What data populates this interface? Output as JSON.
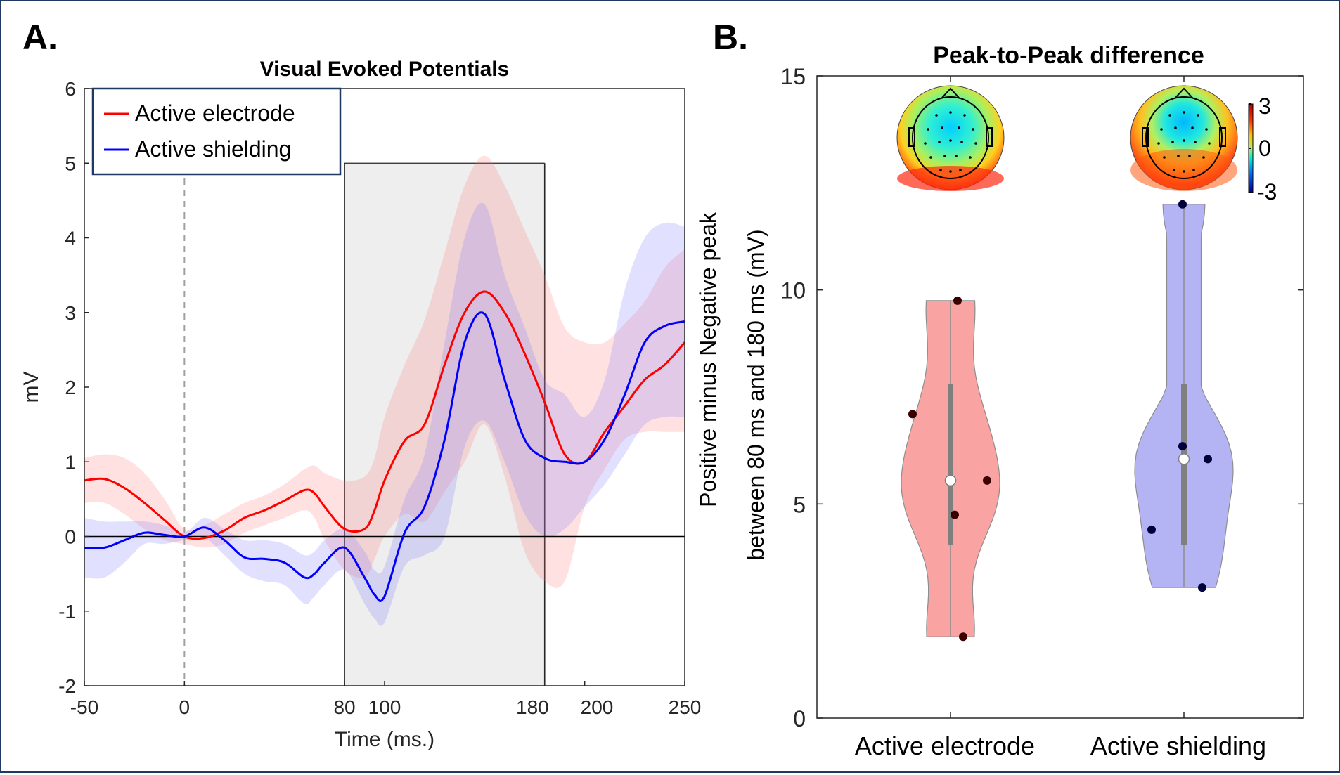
{
  "panels": {
    "a": {
      "letter": "A."
    },
    "b": {
      "letter": "B."
    }
  },
  "chart_data": [
    {
      "type": "line",
      "title": "Visual Evoked Potentials",
      "xlabel": "Time (ms.)",
      "ylabel": "mV",
      "xlim": [
        -50,
        250
      ],
      "ylim": [
        -2,
        6
      ],
      "xticks": [
        "-50",
        "0",
        "80",
        "100",
        "180",
        "200",
        "250"
      ],
      "yticks": [
        "-2",
        "-1",
        "0",
        "1",
        "2",
        "3",
        "4",
        "5",
        "6"
      ],
      "legend_position": "top-left",
      "window": {
        "x": [
          80,
          180
        ],
        "y": [
          -2,
          5
        ]
      },
      "stimulus_line_x": 0,
      "series": [
        {
          "name": "Active electrode",
          "color": "#ff0000",
          "x": [
            -50,
            -40,
            -30,
            -20,
            -10,
            0,
            10,
            20,
            30,
            40,
            50,
            60,
            65,
            70,
            80,
            90,
            95,
            100,
            110,
            120,
            130,
            140,
            150,
            160,
            170,
            180,
            190,
            200,
            210,
            220,
            230,
            240,
            250
          ],
          "mean": [
            0.75,
            0.77,
            0.65,
            0.45,
            0.22,
            0.0,
            -0.02,
            0.08,
            0.25,
            0.35,
            0.48,
            0.62,
            0.58,
            0.4,
            0.1,
            0.1,
            0.35,
            0.75,
            1.28,
            1.5,
            2.3,
            3.0,
            3.28,
            3.0,
            2.45,
            1.8,
            1.1,
            1.0,
            1.4,
            1.75,
            2.1,
            2.3,
            2.6
          ],
          "upper": [
            1.05,
            1.1,
            1.05,
            0.85,
            0.5,
            0.1,
            0.15,
            0.3,
            0.45,
            0.55,
            0.7,
            0.9,
            0.95,
            0.85,
            0.75,
            0.8,
            1.05,
            1.6,
            2.3,
            2.9,
            3.8,
            4.7,
            5.1,
            4.7,
            4.1,
            3.5,
            2.8,
            2.6,
            2.6,
            2.85,
            3.15,
            3.6,
            3.85
          ],
          "lower": [
            0.45,
            0.45,
            0.3,
            0.1,
            -0.05,
            -0.1,
            -0.15,
            -0.1,
            0.05,
            0.15,
            0.25,
            0.35,
            0.25,
            -0.05,
            -0.45,
            -0.55,
            -0.3,
            0.0,
            0.3,
            0.2,
            0.6,
            1.0,
            1.5,
            0.8,
            -0.2,
            -0.6,
            -0.6,
            0.4,
            0.9,
            1.3,
            1.4,
            1.4,
            1.4
          ]
        },
        {
          "name": "Active shielding",
          "color": "#0000ff",
          "x": [
            -50,
            -40,
            -30,
            -20,
            -10,
            0,
            10,
            20,
            30,
            40,
            50,
            60,
            65,
            70,
            80,
            90,
            95,
            100,
            110,
            120,
            130,
            140,
            150,
            160,
            170,
            180,
            190,
            200,
            210,
            220,
            230,
            240,
            250
          ],
          "mean": [
            -0.15,
            -0.15,
            -0.05,
            0.05,
            0.02,
            0.0,
            0.12,
            -0.05,
            -0.28,
            -0.3,
            -0.35,
            -0.55,
            -0.5,
            -0.35,
            -0.15,
            -0.55,
            -0.78,
            -0.8,
            0.05,
            0.4,
            1.3,
            2.6,
            2.98,
            2.1,
            1.3,
            1.05,
            1.0,
            1.0,
            1.3,
            1.9,
            2.6,
            2.82,
            2.88
          ],
          "upper": [
            0.25,
            0.2,
            0.2,
            0.2,
            0.15,
            0.05,
            0.25,
            0.1,
            -0.05,
            -0.05,
            -0.1,
            -0.25,
            -0.2,
            -0.05,
            0.1,
            -0.2,
            -0.45,
            -0.4,
            0.5,
            1.1,
            2.6,
            4.0,
            4.45,
            3.5,
            2.8,
            2.1,
            1.9,
            1.6,
            2.1,
            3.3,
            4.0,
            4.2,
            4.15
          ],
          "lower": [
            -0.55,
            -0.55,
            -0.35,
            -0.1,
            -0.1,
            -0.05,
            -0.02,
            -0.25,
            -0.5,
            -0.6,
            -0.65,
            -0.9,
            -0.8,
            -0.65,
            -0.45,
            -0.9,
            -1.1,
            -1.15,
            -0.4,
            -0.25,
            0.0,
            1.2,
            1.55,
            1.0,
            0.3,
            0.0,
            0.1,
            0.4,
            0.7,
            1.1,
            1.5,
            1.6,
            1.6
          ]
        }
      ]
    },
    {
      "type": "violin",
      "title": "Peak-to-Peak difference",
      "ylabel": "Positive minus Negative  peak between 80 ms and 180 ms (mV)",
      "ylim": [
        0,
        15
      ],
      "yticks": [
        "0",
        "5",
        "10",
        "15"
      ],
      "categories": [
        "Active electrode",
        "Active shielding"
      ],
      "colorbar": {
        "ticks": [
          "3",
          "0",
          "-3"
        ],
        "range": [
          -3,
          3
        ]
      },
      "groups": [
        {
          "name": "Active electrode",
          "color": "#f89494",
          "points": [
            9.75,
            7.1,
            5.55,
            4.75,
            1.9
          ],
          "median": 5.55,
          "q1": 4.05,
          "q3": 7.8,
          "min": 1.9,
          "max": 9.75
        },
        {
          "name": "Active shielding",
          "color": "#a7a7f4",
          "points": [
            12.0,
            6.35,
            6.05,
            4.4,
            3.05
          ],
          "median": 6.05,
          "q1": 4.05,
          "q3": 7.8,
          "min": 3.05,
          "max": 12.0
        }
      ]
    }
  ]
}
